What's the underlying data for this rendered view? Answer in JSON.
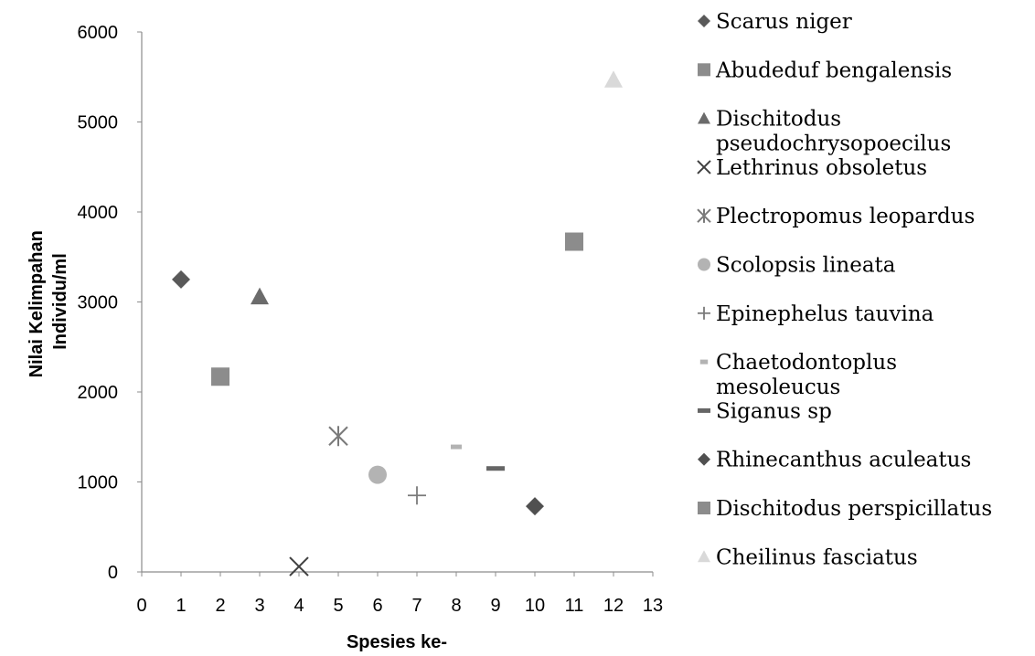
{
  "chart_data": {
    "type": "scatter",
    "title": "",
    "xlabel": "Spesies ke-",
    "ylabel_lines": [
      "Nilai Kelimpahan",
      "Individu/ml"
    ],
    "xlim": [
      0,
      13
    ],
    "ylim": [
      0,
      6000
    ],
    "x_ticks": [
      "0",
      "1",
      "2",
      "3",
      "4",
      "5",
      "6",
      "7",
      "8",
      "9",
      "10",
      "11",
      "12",
      "13"
    ],
    "y_ticks": [
      "0",
      "1000",
      "2000",
      "3000",
      "4000",
      "5000",
      "6000"
    ],
    "grid": false,
    "legend_position": "right",
    "series": [
      {
        "name": "Scarus niger",
        "name_lines": [
          "Scarus niger"
        ],
        "marker": "diamond",
        "color": "#595959",
        "x": 1,
        "y": 3250
      },
      {
        "name": "Abudeduf bengalensis",
        "name_lines": [
          "Abudeduf bengalensis"
        ],
        "marker": "square",
        "color": "#8c8c8c",
        "x": 2,
        "y": 2170
      },
      {
        "name": "Dischitodus pseudochrysopoecilus",
        "name_lines": [
          "Dischitodus",
          "pseudochrysopoecilus"
        ],
        "marker": "triangle",
        "color": "#6b6b6b",
        "x": 3,
        "y": 3060
      },
      {
        "name": "Lethrinus obsoletus",
        "name_lines": [
          "Lethrinus obsoletus"
        ],
        "marker": "x",
        "color": "#404040",
        "x": 4,
        "y": 60
      },
      {
        "name": "Plectropomus leopardus",
        "name_lines": [
          "Plectropomus leopardus"
        ],
        "marker": "star",
        "color": "#7a7a7a",
        "x": 5,
        "y": 1510
      },
      {
        "name": "Scolopsis lineata",
        "name_lines": [
          "Scolopsis lineata"
        ],
        "marker": "circle",
        "color": "#b3b3b3",
        "x": 6,
        "y": 1080
      },
      {
        "name": "Epinephelus tauvina",
        "name_lines": [
          "Epinephelus tauvina"
        ],
        "marker": "plus",
        "color": "#7a7a7a",
        "x": 7,
        "y": 850
      },
      {
        "name": "Chaetodontoplus mesoleucus",
        "name_lines": [
          "Chaetodontoplus",
          "mesoleucus"
        ],
        "marker": "dash-short",
        "color": "#b3b3b3",
        "x": 8,
        "y": 1390
      },
      {
        "name": "Siganus sp",
        "name_lines": [
          "Siganus sp"
        ],
        "marker": "dash",
        "color": "#666666",
        "x": 9,
        "y": 1150
      },
      {
        "name": "Rhinecanthus aculeatus",
        "name_lines": [
          "Rhinecanthus aculeatus"
        ],
        "marker": "diamond",
        "color": "#505050",
        "x": 10,
        "y": 730
      },
      {
        "name": "Dischitodus perspicillatus",
        "name_lines": [
          "Dischitodus perspicillatus"
        ],
        "marker": "square",
        "color": "#8c8c8c",
        "x": 11,
        "y": 3670
      },
      {
        "name": "Cheilinus fasciatus",
        "name_lines": [
          "Cheilinus fasciatus"
        ],
        "marker": "triangle",
        "color": "#d9d9d9",
        "x": 12,
        "y": 5470
      }
    ]
  }
}
